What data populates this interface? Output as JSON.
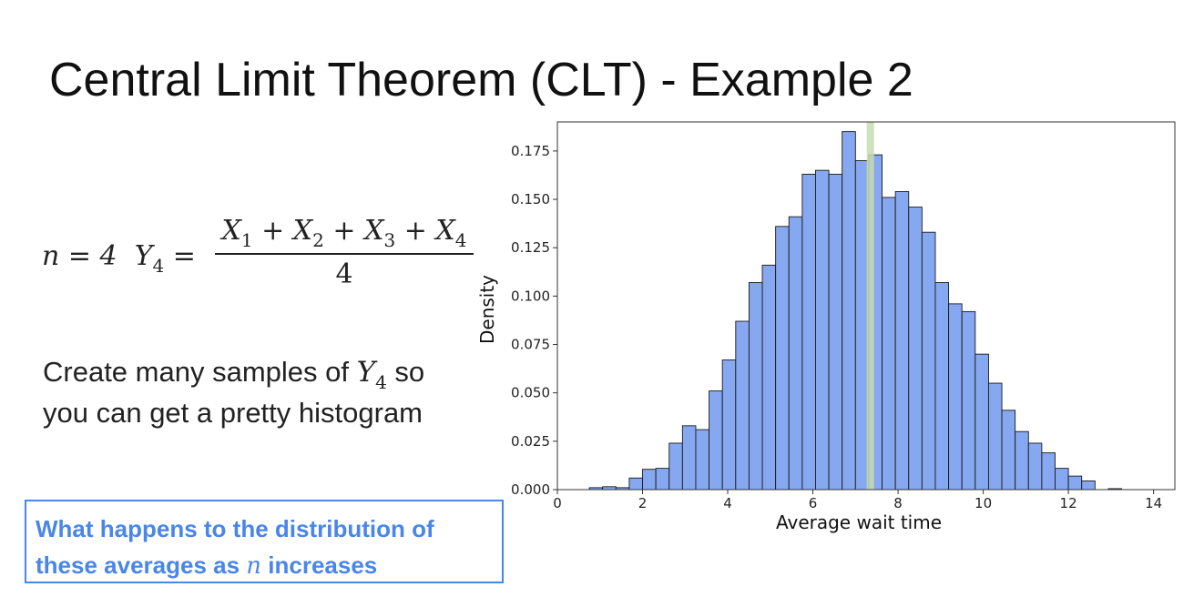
{
  "slide": {
    "title": "Central Limit Theorem (CLT) - Example 2",
    "formula": {
      "n_part": "n = 4",
      "y_var": "Y",
      "y_sub": "4",
      "eq": " =",
      "numerator": [
        "X",
        "1",
        " + X",
        "2",
        " + X",
        "3",
        " + X",
        "4"
      ],
      "denominator": "4"
    },
    "body": {
      "line1_prefix": "Create many samples of ",
      "var": "Y",
      "var_sub": "4",
      "line1_suffix": " so",
      "line2": "you can get a pretty histogram"
    },
    "callout": {
      "line1": "What happens to the distribution of",
      "line2_prefix": "these averages as ",
      "line2_var": "n",
      "line2_suffix": " increases"
    }
  },
  "chart_data": {
    "type": "bar",
    "xlabel": "Average wait time",
    "ylabel": "Density",
    "xlim": [
      0,
      14.5
    ],
    "ylim": [
      0,
      0.19
    ],
    "xticks": [
      "0",
      "2",
      "4",
      "6",
      "8",
      "10",
      "12",
      "14"
    ],
    "yticks": [
      "0.000",
      "0.025",
      "0.050",
      "0.075",
      "0.100",
      "0.125",
      "0.150",
      "0.175"
    ],
    "bin_start": 0.75,
    "bin_width": 0.3125,
    "values": [
      0.001,
      0.0015,
      0.001,
      0.006,
      0.0105,
      0.011,
      0.024,
      0.033,
      0.031,
      0.051,
      0.067,
      0.087,
      0.107,
      0.116,
      0.136,
      0.141,
      0.163,
      0.165,
      0.163,
      0.185,
      0.17,
      0.173,
      0.151,
      0.154,
      0.146,
      0.133,
      0.107,
      0.096,
      0.092,
      0.07,
      0.055,
      0.041,
      0.03,
      0.024,
      0.019,
      0.011,
      0.007,
      0.0045,
      0.0,
      0.0005
    ],
    "mean_line_x": 7.35,
    "colors": {
      "bar": "#86a8f0",
      "bar_edge": "#1a1a1a",
      "mean_line": "#c8dcb0"
    },
    "grid": false
  }
}
